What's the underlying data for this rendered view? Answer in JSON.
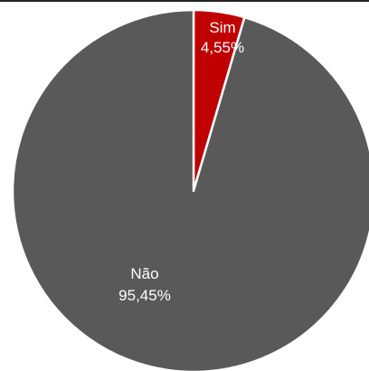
{
  "chart_data": {
    "type": "pie",
    "slices": [
      {
        "name": "Sim",
        "value": 4.55,
        "label": "4,55%",
        "color": "#c00000"
      },
      {
        "name": "Não",
        "value": 95.45,
        "label": "95,45%",
        "color": "#595959"
      }
    ],
    "start_angle": "12 o'clock",
    "direction": "clockwise",
    "separator_color": "#ffffff"
  }
}
